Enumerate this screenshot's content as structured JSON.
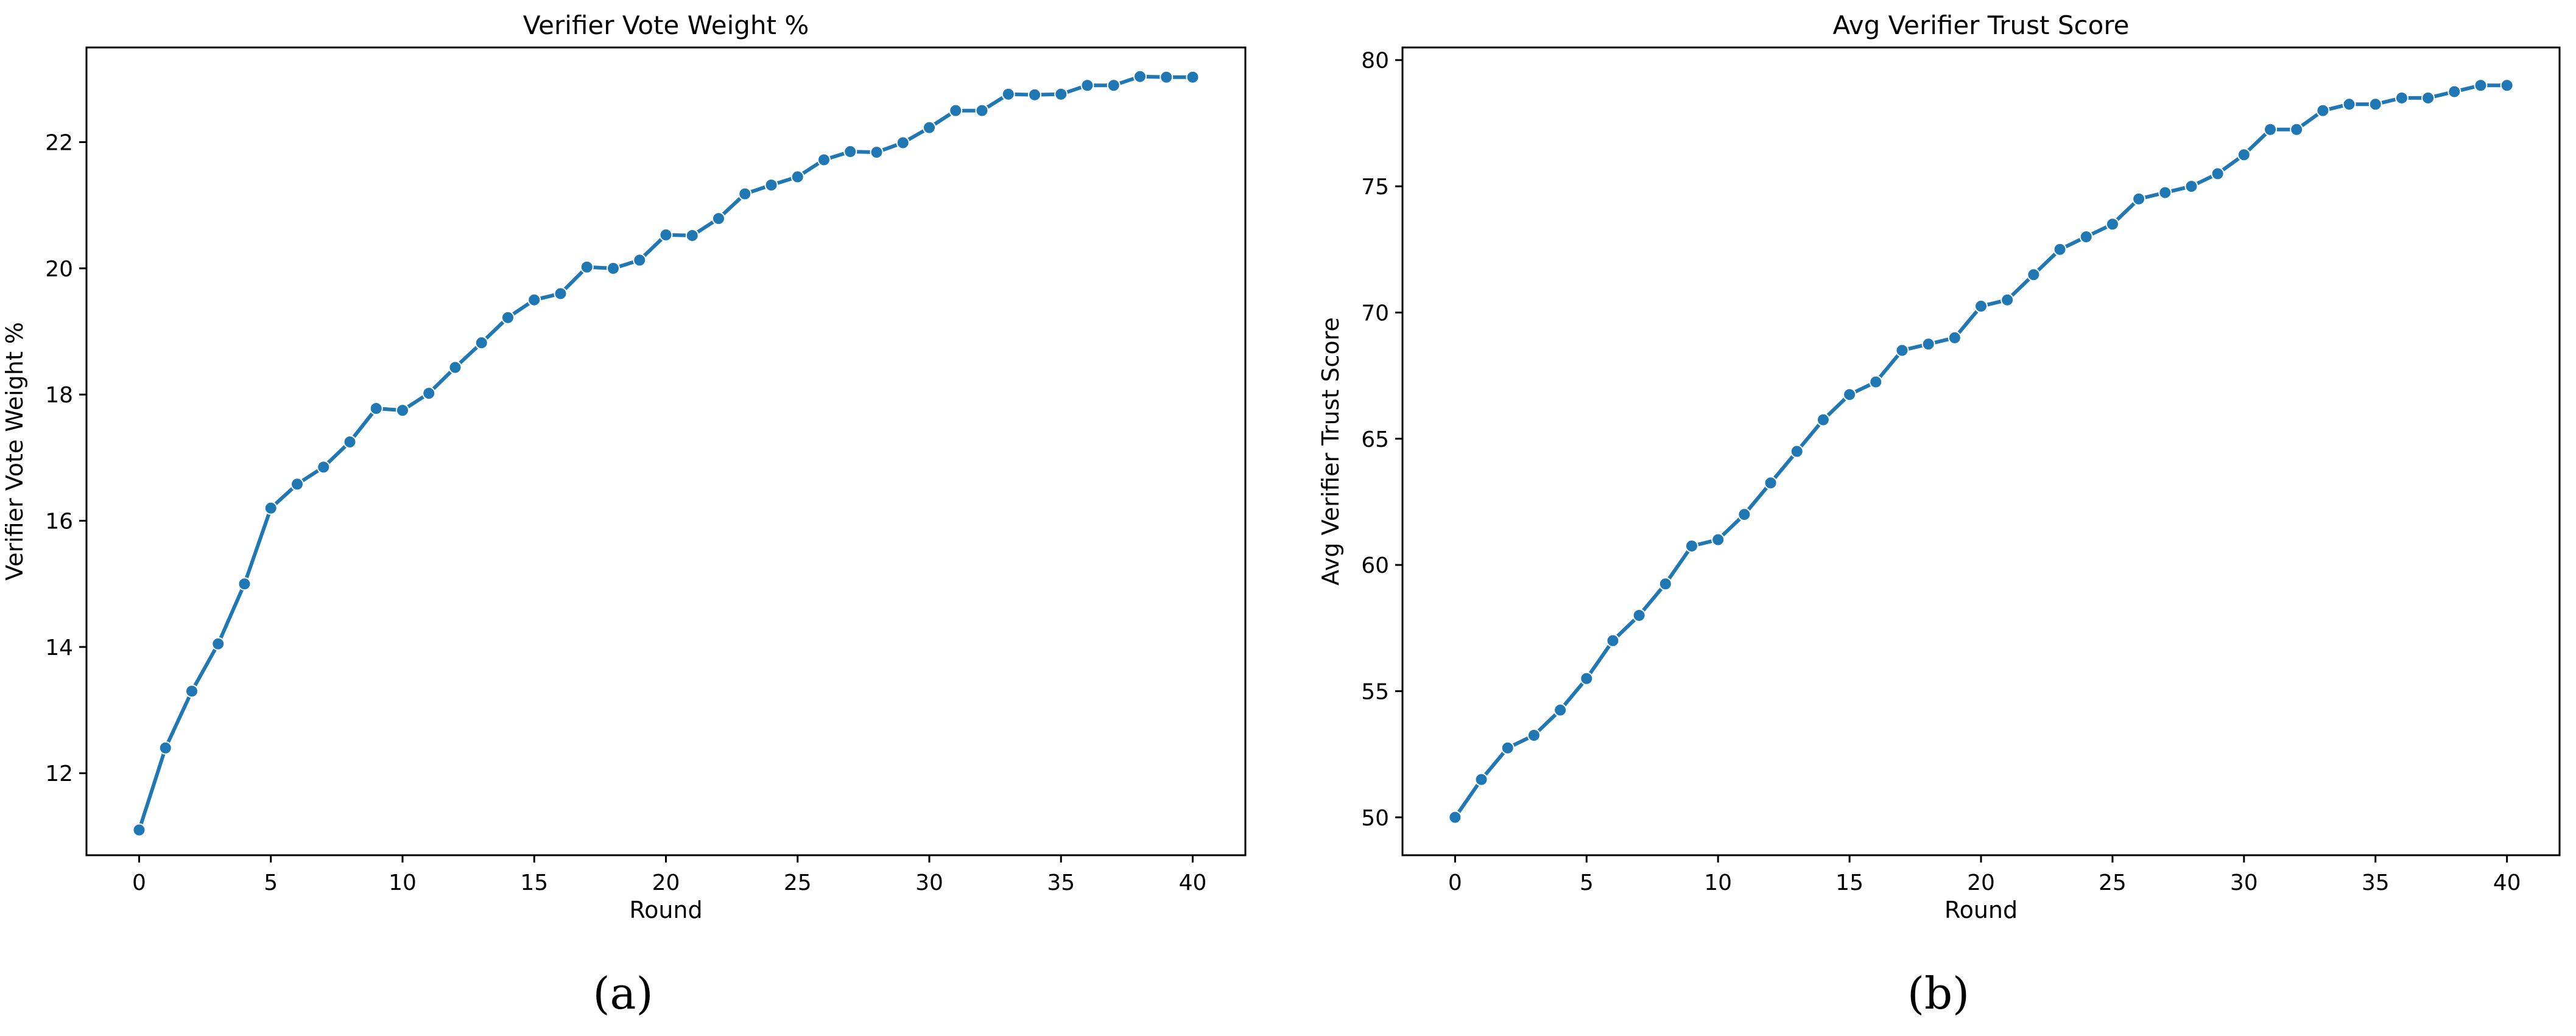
{
  "colors": {
    "line": "#1f77b4",
    "axis": "#000000",
    "background": "#ffffff"
  },
  "captions": [
    "(a)",
    "(b)"
  ],
  "chart_data": [
    {
      "type": "line",
      "title": "Verifier Vote Weight %",
      "xlabel": "Round",
      "ylabel": "Verifier Vote Weight %",
      "xlim": [
        -2,
        42
      ],
      "ylim": [
        10.7,
        23.5
      ],
      "xticks": [
        0,
        5,
        10,
        15,
        20,
        25,
        30,
        35,
        40
      ],
      "yticks": [
        12,
        14,
        16,
        18,
        20,
        22
      ],
      "grid": false,
      "marker": "circle",
      "x": [
        0,
        1,
        2,
        3,
        4,
        5,
        6,
        7,
        8,
        9,
        10,
        11,
        12,
        13,
        14,
        15,
        16,
        17,
        18,
        19,
        20,
        21,
        22,
        23,
        24,
        25,
        26,
        27,
        28,
        29,
        30,
        31,
        32,
        33,
        34,
        35,
        36,
        37,
        38,
        39,
        40
      ],
      "series": [
        {
          "values": [
            11.1,
            12.4,
            13.3,
            14.05,
            15.0,
            16.2,
            16.58,
            16.85,
            17.25,
            17.78,
            17.75,
            18.02,
            18.43,
            18.82,
            19.22,
            19.5,
            19.6,
            20.02,
            20.0,
            20.13,
            20.53,
            20.52,
            20.79,
            21.18,
            21.32,
            21.45,
            21.72,
            21.85,
            21.84,
            21.99,
            22.23,
            22.5,
            22.5,
            22.76,
            22.75,
            22.76,
            22.9,
            22.9,
            23.04,
            23.03,
            23.03
          ]
        }
      ]
    },
    {
      "type": "line",
      "title": "Avg Verifier Trust Score",
      "xlabel": "Round",
      "ylabel": "Avg Verifier Trust Score",
      "xlim": [
        -2,
        42
      ],
      "ylim": [
        48.5,
        80.5
      ],
      "xticks": [
        0,
        5,
        10,
        15,
        20,
        25,
        30,
        35,
        40
      ],
      "yticks": [
        50,
        55,
        60,
        65,
        70,
        75,
        80
      ],
      "grid": false,
      "marker": "circle",
      "x": [
        0,
        1,
        2,
        3,
        4,
        5,
        6,
        7,
        8,
        9,
        10,
        11,
        12,
        13,
        14,
        15,
        16,
        17,
        18,
        19,
        20,
        21,
        22,
        23,
        24,
        25,
        26,
        27,
        28,
        29,
        30,
        31,
        32,
        33,
        34,
        35,
        36,
        37,
        38,
        39,
        40
      ],
      "series": [
        {
          "values": [
            50.0,
            51.5,
            52.75,
            53.25,
            54.25,
            55.5,
            57.0,
            58.0,
            59.25,
            60.75,
            61.0,
            62.0,
            63.25,
            64.5,
            65.75,
            66.75,
            67.25,
            68.5,
            68.75,
            69.0,
            70.25,
            70.5,
            71.5,
            72.5,
            73.0,
            73.5,
            74.5,
            74.75,
            75.0,
            75.5,
            76.25,
            77.25,
            77.25,
            78.0,
            78.25,
            78.25,
            78.5,
            78.5,
            78.75,
            79.0,
            79.0
          ]
        }
      ]
    }
  ]
}
